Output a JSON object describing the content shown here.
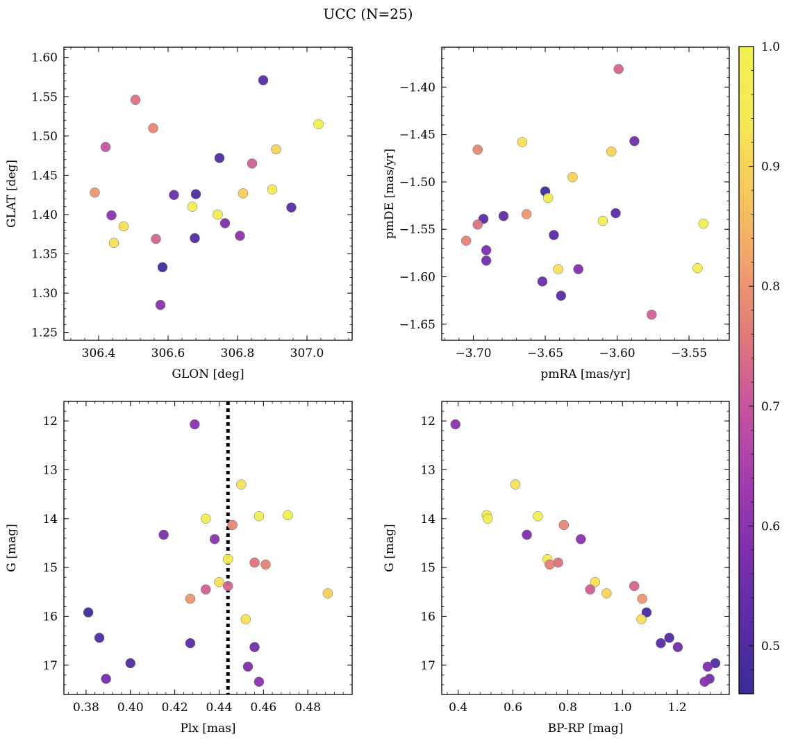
{
  "figure_title": "UCC (N=25)",
  "colorbar": {
    "min": 0.46,
    "max": 1.0,
    "ticks": [
      0.5,
      0.6,
      0.7,
      0.8,
      0.9,
      1.0
    ],
    "tick_labels": [
      "0.5",
      "0.6",
      "0.7",
      "0.8",
      "0.9",
      "1.0"
    ],
    "colormap": "plasma",
    "cmap_stops": [
      "#3b2b97",
      "#5a2ca6",
      "#7e2fae",
      "#a43cae",
      "#c8539f",
      "#e07a7a",
      "#f2a26c",
      "#f7c95a",
      "#f5ea55",
      "#eef04f"
    ]
  },
  "chart_data": [
    {
      "type": "scatter",
      "name": "panel-glon-glat",
      "xlabel": "GLON [deg]",
      "ylabel": "GLAT [deg]",
      "xlim": [
        306.3,
        307.13
      ],
      "ylim": [
        1.24,
        1.613
      ],
      "y_inverted": false,
      "xticks": [
        306.4,
        306.6,
        306.8,
        307.0
      ],
      "xtick_labels": [
        "306.4",
        "306.6",
        "306.8",
        "307.0"
      ],
      "yticks": [
        1.25,
        1.3,
        1.35,
        1.4,
        1.45,
        1.5,
        1.55,
        1.6
      ],
      "ytick_labels": [
        "1.25",
        "1.30",
        "1.35",
        "1.40",
        "1.45",
        "1.50",
        "1.55",
        "1.60"
      ],
      "points": [
        {
          "x": 306.874,
          "y": 1.571,
          "p": 0.52
        },
        {
          "x": 306.506,
          "y": 1.546,
          "p": 0.75
        },
        {
          "x": 306.557,
          "y": 1.51,
          "p": 0.78
        },
        {
          "x": 307.033,
          "y": 1.515,
          "p": 0.99
        },
        {
          "x": 306.42,
          "y": 1.486,
          "p": 0.7
        },
        {
          "x": 306.911,
          "y": 1.483,
          "p": 0.9
        },
        {
          "x": 306.748,
          "y": 1.472,
          "p": 0.5
        },
        {
          "x": 306.842,
          "y": 1.465,
          "p": 0.72
        },
        {
          "x": 306.389,
          "y": 1.428,
          "p": 0.8
        },
        {
          "x": 306.617,
          "y": 1.425,
          "p": 0.55
        },
        {
          "x": 306.68,
          "y": 1.426,
          "p": 0.5
        },
        {
          "x": 306.816,
          "y": 1.427,
          "p": 0.89
        },
        {
          "x": 306.9,
          "y": 1.432,
          "p": 0.95
        },
        {
          "x": 306.67,
          "y": 1.41,
          "p": 0.97
        },
        {
          "x": 306.955,
          "y": 1.409,
          "p": 0.52
        },
        {
          "x": 306.743,
          "y": 1.4,
          "p": 0.97
        },
        {
          "x": 306.437,
          "y": 1.399,
          "p": 0.6
        },
        {
          "x": 306.472,
          "y": 1.385,
          "p": 0.92
        },
        {
          "x": 306.764,
          "y": 1.389,
          "p": 0.58
        },
        {
          "x": 306.807,
          "y": 1.373,
          "p": 0.6
        },
        {
          "x": 306.565,
          "y": 1.369,
          "p": 0.73
        },
        {
          "x": 306.677,
          "y": 1.37,
          "p": 0.5
        },
        {
          "x": 306.444,
          "y": 1.364,
          "p": 0.92
        },
        {
          "x": 306.584,
          "y": 1.333,
          "p": 0.48
        },
        {
          "x": 306.578,
          "y": 1.285,
          "p": 0.6
        }
      ]
    },
    {
      "type": "scatter",
      "name": "panel-pmra-pmde",
      "xlabel": "pmRA [mas/yr]",
      "ylabel": "pmDE [mas/yr]",
      "xlim": [
        -3.722,
        -3.522
      ],
      "ylim": [
        -1.667,
        -1.358
      ],
      "y_inverted": false,
      "xticks": [
        -3.7,
        -3.65,
        -3.6,
        -3.55
      ],
      "xtick_labels": [
        "−3.70",
        "−3.65",
        "−3.60",
        "−3.55"
      ],
      "yticks": [
        -1.65,
        -1.6,
        -1.55,
        -1.5,
        -1.45,
        -1.4
      ],
      "ytick_labels": [
        "−1.65",
        "−1.60",
        "−1.55",
        "−1.50",
        "−1.45",
        "−1.40"
      ],
      "points": [
        {
          "x": -3.599,
          "y": -1.381,
          "p": 0.73
        },
        {
          "x": -3.666,
          "y": -1.458,
          "p": 0.92
        },
        {
          "x": -3.697,
          "y": -1.466,
          "p": 0.78
        },
        {
          "x": -3.604,
          "y": -1.468,
          "p": 0.9
        },
        {
          "x": -3.588,
          "y": -1.457,
          "p": 0.56
        },
        {
          "x": -3.631,
          "y": -1.495,
          "p": 0.9
        },
        {
          "x": -3.65,
          "y": -1.51,
          "p": 0.48
        },
        {
          "x": -3.648,
          "y": -1.517,
          "p": 0.97
        },
        {
          "x": -3.663,
          "y": -1.534,
          "p": 0.8
        },
        {
          "x": -3.679,
          "y": -1.536,
          "p": 0.53
        },
        {
          "x": -3.693,
          "y": -1.539,
          "p": 0.52
        },
        {
          "x": -3.697,
          "y": -1.545,
          "p": 0.75
        },
        {
          "x": -3.601,
          "y": -1.533,
          "p": 0.52
        },
        {
          "x": -3.61,
          "y": -1.541,
          "p": 0.97
        },
        {
          "x": -3.54,
          "y": -1.544,
          "p": 0.98
        },
        {
          "x": -3.705,
          "y": -1.562,
          "p": 0.77
        },
        {
          "x": -3.644,
          "y": -1.556,
          "p": 0.52
        },
        {
          "x": -3.691,
          "y": -1.572,
          "p": 0.58
        },
        {
          "x": -3.691,
          "y": -1.583,
          "p": 0.56
        },
        {
          "x": -3.641,
          "y": -1.592,
          "p": 0.92
        },
        {
          "x": -3.627,
          "y": -1.592,
          "p": 0.58
        },
        {
          "x": -3.544,
          "y": -1.591,
          "p": 0.95
        },
        {
          "x": -3.652,
          "y": -1.605,
          "p": 0.55
        },
        {
          "x": -3.639,
          "y": -1.62,
          "p": 0.52
        },
        {
          "x": -3.576,
          "y": -1.64,
          "p": 0.72
        }
      ]
    },
    {
      "type": "scatter",
      "name": "panel-plx-g",
      "xlabel": "Plx [mas]",
      "ylabel": "G [mag]",
      "xlim": [
        0.37,
        0.5
      ],
      "ylim": [
        17.6,
        11.6
      ],
      "y_inverted": true,
      "vline": 0.444,
      "xticks": [
        0.38,
        0.4,
        0.42,
        0.44,
        0.46,
        0.48
      ],
      "xtick_labels": [
        "0.38",
        "0.40",
        "0.42",
        "0.44",
        "0.46",
        "0.48"
      ],
      "yticks": [
        12,
        13,
        14,
        15,
        16,
        17
      ],
      "ytick_labels": [
        "12",
        "13",
        "14",
        "15",
        "16",
        "17"
      ],
      "points": [
        {
          "x": 0.429,
          "y": 12.07,
          "p": 0.6
        },
        {
          "x": 0.45,
          "y": 13.3,
          "p": 0.92
        },
        {
          "x": 0.434,
          "y": 14.0,
          "p": 0.97
        },
        {
          "x": 0.458,
          "y": 13.95,
          "p": 0.98
        },
        {
          "x": 0.471,
          "y": 13.93,
          "p": 0.99
        },
        {
          "x": 0.446,
          "y": 14.13,
          "p": 0.78
        },
        {
          "x": 0.415,
          "y": 14.33,
          "p": 0.58
        },
        {
          "x": 0.438,
          "y": 14.42,
          "p": 0.6
        },
        {
          "x": 0.444,
          "y": 14.83,
          "p": 0.95
        },
        {
          "x": 0.456,
          "y": 14.9,
          "p": 0.75
        },
        {
          "x": 0.461,
          "y": 14.94,
          "p": 0.77
        },
        {
          "x": 0.44,
          "y": 15.3,
          "p": 0.92
        },
        {
          "x": 0.444,
          "y": 15.38,
          "p": 0.73
        },
        {
          "x": 0.434,
          "y": 15.45,
          "p": 0.72
        },
        {
          "x": 0.489,
          "y": 15.53,
          "p": 0.9
        },
        {
          "x": 0.427,
          "y": 15.64,
          "p": 0.8
        },
        {
          "x": 0.381,
          "y": 15.92,
          "p": 0.48
        },
        {
          "x": 0.452,
          "y": 16.06,
          "p": 0.92
        },
        {
          "x": 0.386,
          "y": 16.44,
          "p": 0.5
        },
        {
          "x": 0.427,
          "y": 16.55,
          "p": 0.52
        },
        {
          "x": 0.456,
          "y": 16.63,
          "p": 0.56
        },
        {
          "x": 0.4,
          "y": 16.96,
          "p": 0.5
        },
        {
          "x": 0.453,
          "y": 17.03,
          "p": 0.58
        },
        {
          "x": 0.389,
          "y": 17.28,
          "p": 0.56
        },
        {
          "x": 0.458,
          "y": 17.34,
          "p": 0.6
        }
      ]
    },
    {
      "type": "scatter",
      "name": "panel-bprp-g",
      "xlabel": "BP-RP [mag]",
      "ylabel": "G [mag]",
      "xlim": [
        0.34,
        1.39
      ],
      "ylim": [
        17.6,
        11.6
      ],
      "y_inverted": true,
      "xticks": [
        0.4,
        0.6,
        0.8,
        1.0,
        1.2
      ],
      "xtick_labels": [
        "0.4",
        "0.6",
        "0.8",
        "1.0",
        "1.2"
      ],
      "yticks": [
        12,
        13,
        14,
        15,
        16,
        17
      ],
      "ytick_labels": [
        "12",
        "13",
        "14",
        "15",
        "16",
        "17"
      ],
      "points": [
        {
          "x": 0.39,
          "y": 12.07,
          "p": 0.6
        },
        {
          "x": 0.609,
          "y": 13.3,
          "p": 0.92
        },
        {
          "x": 0.504,
          "y": 13.93,
          "p": 0.99
        },
        {
          "x": 0.508,
          "y": 14.0,
          "p": 0.97
        },
        {
          "x": 0.691,
          "y": 13.95,
          "p": 0.98
        },
        {
          "x": 0.786,
          "y": 14.13,
          "p": 0.78
        },
        {
          "x": 0.651,
          "y": 14.33,
          "p": 0.58
        },
        {
          "x": 0.848,
          "y": 14.42,
          "p": 0.6
        },
        {
          "x": 0.726,
          "y": 14.83,
          "p": 0.95
        },
        {
          "x": 0.765,
          "y": 14.9,
          "p": 0.75
        },
        {
          "x": 0.734,
          "y": 14.94,
          "p": 0.77
        },
        {
          "x": 0.9,
          "y": 15.3,
          "p": 0.92
        },
        {
          "x": 1.043,
          "y": 15.38,
          "p": 0.73
        },
        {
          "x": 0.882,
          "y": 15.45,
          "p": 0.72
        },
        {
          "x": 0.942,
          "y": 15.53,
          "p": 0.9
        },
        {
          "x": 1.072,
          "y": 15.64,
          "p": 0.8
        },
        {
          "x": 1.088,
          "y": 15.92,
          "p": 0.48
        },
        {
          "x": 1.069,
          "y": 16.06,
          "p": 0.92
        },
        {
          "x": 1.171,
          "y": 16.44,
          "p": 0.5
        },
        {
          "x": 1.14,
          "y": 16.55,
          "p": 0.52
        },
        {
          "x": 1.202,
          "y": 16.63,
          "p": 0.56
        },
        {
          "x": 1.339,
          "y": 16.96,
          "p": 0.5
        },
        {
          "x": 1.311,
          "y": 17.03,
          "p": 0.58
        },
        {
          "x": 1.318,
          "y": 17.28,
          "p": 0.56
        },
        {
          "x": 1.3,
          "y": 17.34,
          "p": 0.6
        }
      ]
    }
  ]
}
